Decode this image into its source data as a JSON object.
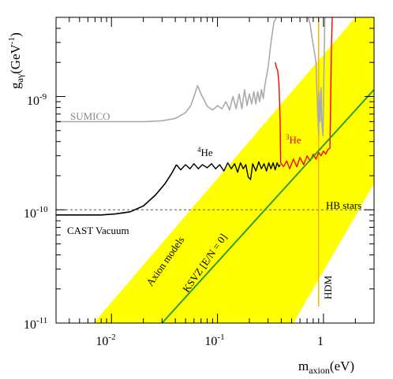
{
  "chart_data": {
    "type": "line",
    "x_scale": "log",
    "y_scale": "log",
    "xlim": [
      0.003,
      3.0
    ],
    "ylim": [
      1e-11,
      5e-09
    ],
    "xlabel": "m",
    "xlabel_sub": "axion",
    "xlabel_unit": "(eV)",
    "ylabel": "g",
    "ylabel_sub": "aγ",
    "ylabel_unit": "(GeV",
    "ylabel_unit_sup": "-1",
    "ylabel_unit_close": ")",
    "grid": false,
    "x_ticks": [
      {
        "base": "10",
        "exp": "-2",
        "value": 0.01
      },
      {
        "base": "10",
        "exp": "-1",
        "value": 0.1
      },
      {
        "base": "1",
        "exp": "",
        "value": 1
      }
    ],
    "y_ticks": [
      {
        "base": "10",
        "exp": "-11",
        "value": 1e-11
      },
      {
        "base": "10",
        "exp": "-10",
        "value": 1e-10
      },
      {
        "base": "10",
        "exp": "-9",
        "value": 1e-09
      }
    ],
    "colors": {
      "band": "#ffff00",
      "ksvz": "#2e9e2e",
      "he3": "#ff0000",
      "he4": "#000000",
      "sumico": "#aaaaaa",
      "hdm": "#ffb400",
      "hb": "#555555"
    },
    "axion_band": [
      {
        "x": 0.0068,
        "y": 1e-11
      },
      {
        "x": 2.0,
        "y": 5e-09
      },
      {
        "x": 3.0,
        "y": 5e-09
      },
      {
        "x": 3.0,
        "y": 1.7e-10
      },
      {
        "x": 0.52,
        "y": 1e-11
      }
    ],
    "ksvz_line": [
      {
        "x": 0.03,
        "y": 1e-11
      },
      {
        "x": 3.0,
        "y": 1.15e-09
      }
    ],
    "hb_stars_limit": 1e-10,
    "hdm_mass": 0.9,
    "hdm_ylim": [
      1.4e-11,
      5e-09
    ],
    "cast_vacuum": [
      {
        "x": 0.003,
        "y": 9e-11
      },
      {
        "x": 0.005,
        "y": 9e-11
      },
      {
        "x": 0.008,
        "y": 9e-11
      },
      {
        "x": 0.011,
        "y": 9.2e-11
      },
      {
        "x": 0.015,
        "y": 9.6e-11
      },
      {
        "x": 0.02,
        "y": 1.08e-10
      },
      {
        "x": 0.026,
        "y": 1.35e-10
      },
      {
        "x": 0.032,
        "y": 1.7e-10
      },
      {
        "x": 0.037,
        "y": 2.1e-10
      },
      {
        "x": 0.041,
        "y": 2.5e-10
      }
    ],
    "he4_line": [
      {
        "x": 0.041,
        "y": 2.5e-10
      },
      {
        "x": 0.045,
        "y": 2.25e-10
      },
      {
        "x": 0.05,
        "y": 2.5e-10
      },
      {
        "x": 0.055,
        "y": 2.3e-10
      },
      {
        "x": 0.06,
        "y": 2.55e-10
      },
      {
        "x": 0.066,
        "y": 2.3e-10
      },
      {
        "x": 0.072,
        "y": 2.5e-10
      },
      {
        "x": 0.08,
        "y": 2.35e-10
      },
      {
        "x": 0.088,
        "y": 2.55e-10
      },
      {
        "x": 0.096,
        "y": 2.3e-10
      },
      {
        "x": 0.105,
        "y": 2.5e-10
      },
      {
        "x": 0.115,
        "y": 2.2e-10
      },
      {
        "x": 0.125,
        "y": 2.6e-10
      },
      {
        "x": 0.135,
        "y": 2.3e-10
      },
      {
        "x": 0.145,
        "y": 2.55e-10
      },
      {
        "x": 0.155,
        "y": 2.15e-10
      },
      {
        "x": 0.165,
        "y": 2.6e-10
      },
      {
        "x": 0.175,
        "y": 2.3e-10
      },
      {
        "x": 0.185,
        "y": 2.5e-10
      },
      {
        "x": 0.195,
        "y": 1.95e-10
      },
      {
        "x": 0.205,
        "y": 1.85e-10
      },
      {
        "x": 0.215,
        "y": 2.55e-10
      },
      {
        "x": 0.23,
        "y": 2.2e-10
      },
      {
        "x": 0.245,
        "y": 2.65e-10
      },
      {
        "x": 0.26,
        "y": 2.3e-10
      },
      {
        "x": 0.275,
        "y": 2.55e-10
      },
      {
        "x": 0.29,
        "y": 2.2e-10
      },
      {
        "x": 0.305,
        "y": 2.6e-10
      },
      {
        "x": 0.32,
        "y": 2.3e-10
      },
      {
        "x": 0.335,
        "y": 2.6e-10
      },
      {
        "x": 0.35,
        "y": 2.25e-10
      },
      {
        "x": 0.365,
        "y": 2.6e-10
      },
      {
        "x": 0.38,
        "y": 2.4e-10
      },
      {
        "x": 0.39,
        "y": 2.5e-10
      }
    ],
    "he3_line": [
      {
        "x": 0.35,
        "y": 2e-09
      },
      {
        "x": 0.36,
        "y": 1.8e-09
      },
      {
        "x": 0.37,
        "y": 1.7e-09
      },
      {
        "x": 0.38,
        "y": 1.3e-09
      },
      {
        "x": 0.39,
        "y": 6e-10
      },
      {
        "x": 0.395,
        "y": 2.6e-10
      },
      {
        "x": 0.42,
        "y": 2.4e-10
      },
      {
        "x": 0.45,
        "y": 2.7e-10
      },
      {
        "x": 0.48,
        "y": 2.3e-10
      },
      {
        "x": 0.52,
        "y": 2.8e-10
      },
      {
        "x": 0.56,
        "y": 2.4e-10
      },
      {
        "x": 0.6,
        "y": 2.9e-10
      },
      {
        "x": 0.65,
        "y": 2.5e-10
      },
      {
        "x": 0.7,
        "y": 3e-10
      },
      {
        "x": 0.75,
        "y": 2.7e-10
      },
      {
        "x": 0.8,
        "y": 3.1e-10
      },
      {
        "x": 0.85,
        "y": 2.8e-10
      },
      {
        "x": 0.9,
        "y": 3.2e-10
      },
      {
        "x": 0.95,
        "y": 3e-10
      },
      {
        "x": 1.0,
        "y": 3.3e-10
      },
      {
        "x": 1.05,
        "y": 3.1e-10
      },
      {
        "x": 1.1,
        "y": 3.4e-10
      },
      {
        "x": 1.15,
        "y": 3.5e-10
      },
      {
        "x": 1.17,
        "y": 1e-09
      },
      {
        "x": 1.19,
        "y": 3e-09
      },
      {
        "x": 1.21,
        "y": 5e-09
      }
    ],
    "sumico_line": [
      {
        "x": 0.003,
        "y": 6e-10
      },
      {
        "x": 0.01,
        "y": 6e-10
      },
      {
        "x": 0.02,
        "y": 6e-10
      },
      {
        "x": 0.03,
        "y": 6.1e-10
      },
      {
        "x": 0.04,
        "y": 6.4e-10
      },
      {
        "x": 0.05,
        "y": 7.2e-10
      },
      {
        "x": 0.056,
        "y": 8.3e-10
      },
      {
        "x": 0.06,
        "y": 1e-09
      },
      {
        "x": 0.065,
        "y": 1.25e-09
      },
      {
        "x": 0.07,
        "y": 1.05e-09
      },
      {
        "x": 0.08,
        "y": 8.2e-10
      },
      {
        "x": 0.09,
        "y": 7.6e-10
      },
      {
        "x": 0.1,
        "y": 8.3e-10
      },
      {
        "x": 0.11,
        "y": 7.8e-10
      },
      {
        "x": 0.12,
        "y": 9e-10
      },
      {
        "x": 0.13,
        "y": 7.6e-10
      },
      {
        "x": 0.14,
        "y": 1e-09
      },
      {
        "x": 0.15,
        "y": 7.8e-10
      },
      {
        "x": 0.16,
        "y": 1.05e-09
      },
      {
        "x": 0.17,
        "y": 7.8e-10
      },
      {
        "x": 0.18,
        "y": 1.15e-09
      },
      {
        "x": 0.19,
        "y": 8.3e-10
      },
      {
        "x": 0.2,
        "y": 1.05e-09
      },
      {
        "x": 0.21,
        "y": 8.6e-10
      },
      {
        "x": 0.22,
        "y": 1.1e-09
      },
      {
        "x": 0.23,
        "y": 8.6e-10
      },
      {
        "x": 0.24,
        "y": 1.1e-09
      },
      {
        "x": 0.25,
        "y": 9e-10
      },
      {
        "x": 0.26,
        "y": 1.15e-09
      },
      {
        "x": 0.27,
        "y": 9.6e-10
      },
      {
        "x": 0.28,
        "y": 1.25e-09
      },
      {
        "x": 0.3,
        "y": 1.8e-09
      },
      {
        "x": 0.32,
        "y": 3e-09
      },
      {
        "x": 0.34,
        "y": 4.5e-09
      },
      {
        "x": 0.36,
        "y": 5e-09
      }
    ],
    "sumico_line2": [
      {
        "x": 0.72,
        "y": 5e-09
      },
      {
        "x": 0.75,
        "y": 4.3e-09
      },
      {
        "x": 0.78,
        "y": 3.3e-09
      },
      {
        "x": 0.82,
        "y": 2.5e-09
      },
      {
        "x": 0.85,
        "y": 2e-09
      },
      {
        "x": 0.87,
        "y": 1e-09
      },
      {
        "x": 0.89,
        "y": 6e-10
      },
      {
        "x": 0.9,
        "y": 4.5e-10
      },
      {
        "x": 0.91,
        "y": 1.1e-09
      },
      {
        "x": 0.93,
        "y": 6e-10
      },
      {
        "x": 0.95,
        "y": 1.2e-09
      },
      {
        "x": 0.97,
        "y": 5.5e-10
      },
      {
        "x": 0.99,
        "y": 4.5e-10
      },
      {
        "x": 1.01,
        "y": 1.6e-09
      },
      {
        "x": 1.03,
        "y": 5e-09
      }
    ],
    "labels": {
      "sumico": "SUMICO",
      "cast_vacuum": "CAST Vacuum",
      "he4_mass": "4",
      "he4_el": "He",
      "he3_mass": "3",
      "he3_el": "He",
      "hb_stars": "HB stars",
      "hdm": "HDM",
      "axion_models": "Axion models",
      "ksvz": "KSVZ [E/N = 0]"
    }
  }
}
